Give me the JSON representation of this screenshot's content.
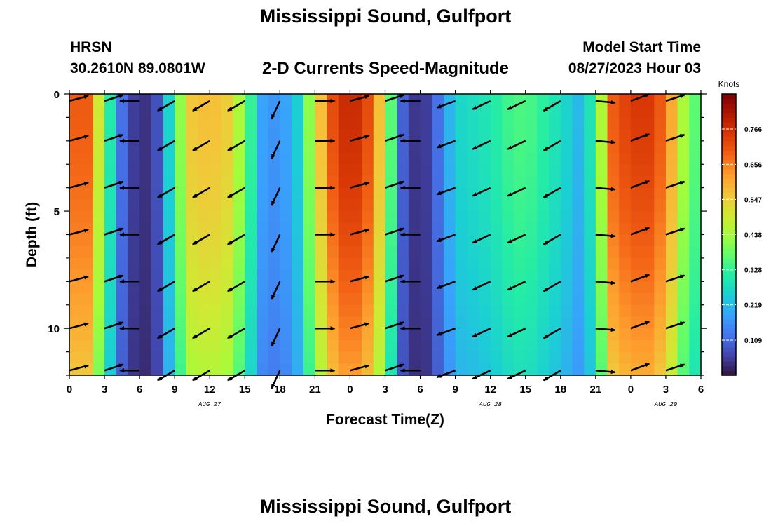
{
  "title": "Mississippi Sound, Gulfport",
  "footer_title": "Mississippi Sound, Gulfport",
  "header": {
    "model": "HRSN",
    "coords": "30.2610N  89.0801W",
    "product": "2-D Currents Speed-Magnitude",
    "start_label": "Model Start Time",
    "start_value": "08/27/2023 Hour 03"
  },
  "chart_data": {
    "type": "heatmap",
    "xlabel": "Forecast Time(Z)",
    "ylabel": "Depth (ft)",
    "x_range_hours": [
      0,
      54
    ],
    "y_range": [
      0,
      12
    ],
    "y_inverted": true,
    "x_tick_labels": [
      "0",
      "3",
      "6",
      "9",
      "12",
      "15",
      "18",
      "21",
      "0",
      "3",
      "6",
      "9",
      "12",
      "15",
      "18",
      "21",
      "0",
      "3",
      "6"
    ],
    "y_ticks": [
      0,
      5,
      10
    ],
    "y_tick_labels": [
      "0",
      "5",
      "10"
    ],
    "date_labels": [
      {
        "text": "AUG 27",
        "hour": 12
      },
      {
        "text": "AUG 28",
        "hour": 36
      },
      {
        "text": "AUG 29",
        "hour": 51
      }
    ],
    "colorbar": {
      "unit": "Knots",
      "range": [
        0.0,
        0.875
      ],
      "ticks": [
        0.109,
        0.219,
        0.328,
        0.438,
        0.547,
        0.656,
        0.766
      ],
      "colors": [
        "#30123b",
        "#4145ab",
        "#4675ed",
        "#39a2fc",
        "#1bcfd4",
        "#24eca6",
        "#61fc6c",
        "#a4fc3b",
        "#d1e834",
        "#f3c63a",
        "#fe9b2d",
        "#f36315",
        "#d93806",
        "#b11901",
        "#7a0403"
      ]
    },
    "speed_profile": [
      {
        "hour": 0,
        "speed": 0.7
      },
      {
        "hour": 1.5,
        "speed": 0.7
      },
      {
        "hour": 3,
        "speed": 0.4
      },
      {
        "hour": 4.5,
        "speed": 0.12
      },
      {
        "hour": 6,
        "speed": 0.02
      },
      {
        "hour": 7.5,
        "speed": 0.08
      },
      {
        "hour": 9,
        "speed": 0.35
      },
      {
        "hour": 10.5,
        "speed": 0.56
      },
      {
        "hour": 12,
        "speed": 0.58
      },
      {
        "hour": 13.5,
        "speed": 0.55
      },
      {
        "hour": 15,
        "speed": 0.4
      },
      {
        "hour": 16.5,
        "speed": 0.19
      },
      {
        "hour": 18,
        "speed": 0.16
      },
      {
        "hour": 19.5,
        "speed": 0.25
      },
      {
        "hour": 21,
        "speed": 0.5
      },
      {
        "hour": 22.5,
        "speed": 0.72
      },
      {
        "hour": 24,
        "speed": 0.8
      },
      {
        "hour": 25.5,
        "speed": 0.72
      },
      {
        "hour": 27,
        "speed": 0.5
      },
      {
        "hour": 28.5,
        "speed": 0.1
      },
      {
        "hour": 30,
        "speed": 0.02
      },
      {
        "hour": 31.5,
        "speed": 0.12
      },
      {
        "hour": 33,
        "speed": 0.26
      },
      {
        "hour": 34.5,
        "speed": 0.28
      },
      {
        "hour": 36,
        "speed": 0.3
      },
      {
        "hour": 37.5,
        "speed": 0.34
      },
      {
        "hour": 39,
        "speed": 0.36
      },
      {
        "hour": 40.5,
        "speed": 0.32
      },
      {
        "hour": 42,
        "speed": 0.28
      },
      {
        "hour": 43.5,
        "speed": 0.22
      },
      {
        "hour": 45,
        "speed": 0.33
      },
      {
        "hour": 46.5,
        "speed": 0.7
      },
      {
        "hour": 48,
        "speed": 0.75
      },
      {
        "hour": 49.5,
        "speed": 0.75
      },
      {
        "hour": 51,
        "speed": 0.68
      },
      {
        "hour": 52.5,
        "speed": 0.45
      },
      {
        "hour": 54,
        "speed": 0.33
      }
    ],
    "vector_rows_depth": [
      0.3,
      2.0,
      4.0,
      6.0,
      8.0,
      10.0,
      11.8
    ],
    "vector_columns": [
      {
        "hour": 0,
        "direction_deg": 75
      },
      {
        "hour": 3,
        "direction_deg": 72
      },
      {
        "hour": 6,
        "direction_deg": 270
      },
      {
        "hour": 9,
        "direction_deg": 240
      },
      {
        "hour": 12,
        "direction_deg": 240
      },
      {
        "hour": 15,
        "direction_deg": 240
      },
      {
        "hour": 18,
        "direction_deg": 205
      },
      {
        "hour": 21,
        "direction_deg": 90
      },
      {
        "hour": 24,
        "direction_deg": 75
      },
      {
        "hour": 27,
        "direction_deg": 72
      },
      {
        "hour": 30,
        "direction_deg": 270
      },
      {
        "hour": 33,
        "direction_deg": 250
      },
      {
        "hour": 36,
        "direction_deg": 245
      },
      {
        "hour": 39,
        "direction_deg": 245
      },
      {
        "hour": 42,
        "direction_deg": 240
      },
      {
        "hour": 45,
        "direction_deg": 95
      },
      {
        "hour": 48,
        "direction_deg": 70
      },
      {
        "hour": 51,
        "direction_deg": 72
      }
    ]
  }
}
